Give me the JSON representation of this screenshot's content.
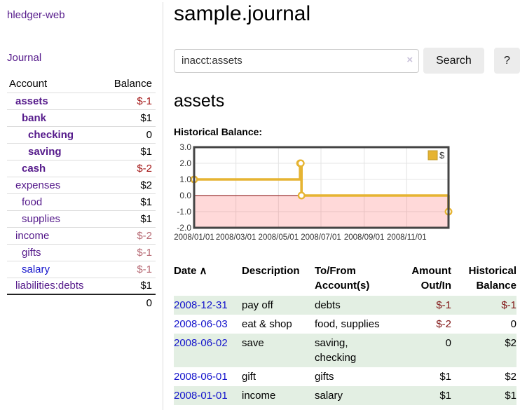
{
  "colors": {
    "link_purple": "#551a8b",
    "link_blue": "#1414cc",
    "negative_strong": "#a31515",
    "negative": "#801414",
    "negative_dim": "#b76a74",
    "row_stripe_green": "#e3efe3",
    "chart_gold": "#e6b432",
    "chart_border": "#444444",
    "button_gray": "#ececec"
  },
  "app_title": "hledger-web",
  "nav": {
    "journal": "Journal"
  },
  "sidebar": {
    "columns": {
      "account": "Account",
      "balance": "Balance"
    },
    "accounts": [
      {
        "name": "assets",
        "balance": "$-1",
        "level": 1,
        "in_query": true,
        "balance_style": "neg-strong",
        "link": "purple"
      },
      {
        "name": "bank",
        "balance": "$1",
        "level": 2,
        "in_query": true,
        "balance_style": "pos",
        "link": "purple"
      },
      {
        "name": "checking",
        "balance": "0",
        "level": 3,
        "in_query": true,
        "balance_style": "pos",
        "link": "purple"
      },
      {
        "name": "saving",
        "balance": "$1",
        "level": 3,
        "in_query": true,
        "balance_style": "pos",
        "link": "purple"
      },
      {
        "name": "cash",
        "balance": "$-2",
        "level": 2,
        "in_query": true,
        "balance_style": "neg-strong",
        "link": "purple"
      },
      {
        "name": "expenses",
        "balance": "$2",
        "level": 1,
        "in_query": false,
        "balance_style": "pos",
        "link": "purple"
      },
      {
        "name": "food",
        "balance": "$1",
        "level": 2,
        "in_query": false,
        "balance_style": "pos",
        "link": "purple"
      },
      {
        "name": "supplies",
        "balance": "$1",
        "level": 2,
        "in_query": false,
        "balance_style": "pos",
        "link": "purple"
      },
      {
        "name": "income",
        "balance": "$-2",
        "level": 1,
        "in_query": false,
        "balance_style": "neg-dim",
        "link": "purple"
      },
      {
        "name": "gifts",
        "balance": "$-1",
        "level": 2,
        "in_query": false,
        "balance_style": "neg-dim",
        "link": "purple"
      },
      {
        "name": "salary",
        "balance": "$-1",
        "level": 2,
        "in_query": false,
        "balance_style": "neg-dim",
        "link": "blue"
      },
      {
        "name": "liabilities:debts",
        "balance": "$1",
        "level": 1,
        "in_query": false,
        "balance_style": "pos",
        "link": "purple"
      }
    ],
    "total": "0"
  },
  "page": {
    "title": "sample.journal"
  },
  "search": {
    "value": "inacct:assets",
    "clear_icon": "×",
    "button_label": "Search",
    "help_label": "?"
  },
  "account_page": {
    "heading": "assets",
    "chart_title": "Historical Balance:"
  },
  "chart_data": {
    "type": "line",
    "step": true,
    "title": "Historical Balance",
    "x_range": [
      "2008-01-01",
      "2008-12-31"
    ],
    "ylim": [
      -2.0,
      3.0
    ],
    "yticks": [
      "3.0",
      "2.0",
      "1.0",
      "0.0",
      "-1.0",
      "-2.0"
    ],
    "xticks": [
      "2008/01/01",
      "2008/03/01",
      "2008/05/01",
      "2008/07/01",
      "2008/09/01",
      "2008/11/01"
    ],
    "grid": true,
    "legend": {
      "label": "$",
      "position": "top-right"
    },
    "series": [
      {
        "name": "$",
        "color": "#e6b432",
        "points": [
          [
            "2008-01-01",
            1
          ],
          [
            "2008-06-01",
            2
          ],
          [
            "2008-06-02",
            2
          ],
          [
            "2008-06-03",
            0
          ],
          [
            "2008-12-31",
            -1
          ]
        ]
      }
    ],
    "negative_fill": "rgba(255,0,0,0.15)",
    "zero_line_color": "#993333"
  },
  "register": {
    "headers": {
      "date": "Date",
      "description": "Description",
      "accounts": "To/From Account(s)",
      "amount": "Amount Out/In",
      "balance": "Historical Balance"
    },
    "sort_icon": "∧",
    "rows": [
      {
        "date": "2008-12-31",
        "description": "pay off",
        "accounts": "debts",
        "amount": "$-1",
        "balance": "$-1",
        "amount_negative": true,
        "balance_negative": true,
        "shaded": true
      },
      {
        "date": "2008-06-03",
        "description": "eat & shop",
        "accounts": "food, supplies",
        "amount": "$-2",
        "balance": "0",
        "amount_negative": true,
        "balance_negative": false,
        "shaded": false
      },
      {
        "date": "2008-06-02",
        "description": "save",
        "accounts": "saving, checking",
        "amount": "0",
        "balance": "$2",
        "amount_negative": false,
        "balance_negative": false,
        "shaded": true
      },
      {
        "date": "2008-06-01",
        "description": "gift",
        "accounts": "gifts",
        "amount": "$1",
        "balance": "$2",
        "amount_negative": false,
        "balance_negative": false,
        "shaded": false
      },
      {
        "date": "2008-01-01",
        "description": "income",
        "accounts": "salary",
        "amount": "$1",
        "balance": "$1",
        "amount_negative": false,
        "balance_negative": false,
        "shaded": true
      }
    ]
  }
}
